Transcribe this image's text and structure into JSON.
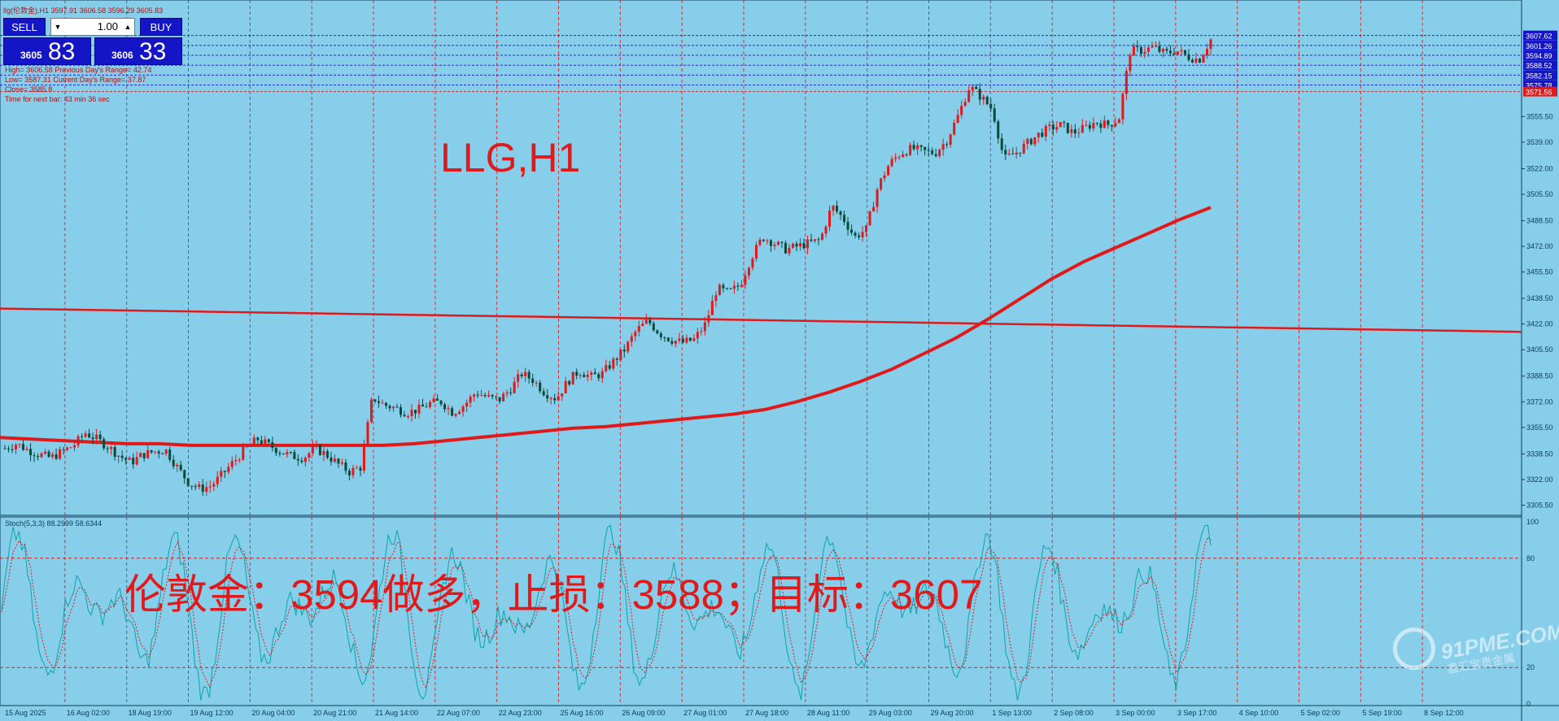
{
  "window": {
    "title": "llg(伦敦金),H1",
    "ohlc": "3597.91 3606.58 3596.29 3605.83"
  },
  "trade_panel": {
    "sell_label": "SELL",
    "buy_label": "BUY",
    "lot": "1.00",
    "bid_small": "3605",
    "bid_big": "83",
    "ask_small": "3606",
    "ask_big": "33"
  },
  "info_lines": [
    "High= 3606.58  Previous Day's Range= 42.74",
    "Low= 3587.31  Current Day's Range= 37.87",
    "Close= 3585.8",
    "Time for next bar: 43 min 36 sec"
  ],
  "overlay_title": "LLG,H1",
  "overlay_note": "伦敦金：3594做多，止损：3588；目标：3607",
  "stoch_label": "Stoch(5,3,3) 88.2999 58.6344",
  "watermark": {
    "logo": "91PME.COM",
    "sub": "鑫汇宝贵金属"
  },
  "colors": {
    "background": "#87CEEB",
    "up_candle": "#e01a1a",
    "down_candle": "#0a4a3a",
    "ma": "#e01a1a",
    "grid": "#e01a1a",
    "stoch_main": "#0aa5a5",
    "stoch_signal": "#e01a1a",
    "price_box": "#1515c8"
  },
  "chart_data": [
    {
      "type": "candlestick",
      "title": "LLG,H1",
      "ylim": [
        3300,
        3620
      ],
      "y_ticks": [
        "3555.50",
        "3539.00",
        "3522.00",
        "3505.50",
        "3488.50",
        "3472.00",
        "3455.50",
        "3438.50",
        "3422.00",
        "3405.50",
        "3388.50",
        "3372.00",
        "3355.50",
        "3338.50",
        "3322.00",
        "3305.50"
      ],
      "level_labels": [
        "3607.62",
        "3601.26",
        "3594.89",
        "3588.52",
        "3582.15",
        "3575.78",
        "3571.56"
      ],
      "x_ticks": [
        "15 Aug 2025",
        "16 Aug 02:00",
        "18 Aug 19:00",
        "19 Aug 12:00",
        "20 Aug 04:00",
        "20 Aug 21:00",
        "21 Aug 14:00",
        "22 Aug 07:00",
        "22 Aug 23:00",
        "25 Aug 16:00",
        "26 Aug 09:00",
        "27 Aug 01:00",
        "27 Aug 18:00",
        "28 Aug 11:00",
        "29 Aug 03:00",
        "29 Aug 20:00",
        "1 Sep 13:00",
        "2 Sep 08:00",
        "3 Sep 00:00",
        "3 Sep 17:00",
        "4 Sep 10:00",
        "5 Sep 02:00",
        "5 Sep 19:00",
        "8 Sep 12:00"
      ],
      "close_path": [
        3342,
        3345,
        3341,
        3338,
        3336,
        3340,
        3344,
        3352,
        3348,
        3343,
        3337,
        3333,
        3338,
        3340,
        3341,
        3330,
        3320,
        3316,
        3318,
        3326,
        3334,
        3342,
        3348,
        3344,
        3340,
        3337,
        3336,
        3342,
        3338,
        3332,
        3327,
        3330,
        3375,
        3370,
        3368,
        3365,
        3367,
        3371,
        3372,
        3365,
        3370,
        3378,
        3375,
        3373,
        3380,
        3390,
        3386,
        3378,
        3374,
        3385,
        3392,
        3388,
        3390,
        3398,
        3406,
        3418,
        3424,
        3416,
        3412,
        3410,
        3412,
        3422,
        3445,
        3442,
        3447,
        3465,
        3478,
        3474,
        3470,
        3472,
        3474,
        3476,
        3498,
        3490,
        3478,
        3483,
        3510,
        3525,
        3532,
        3535,
        3533,
        3532,
        3540,
        3556,
        3575,
        3568,
        3560,
        3528,
        3532,
        3538,
        3544,
        3548,
        3550,
        3545,
        3548,
        3552,
        3550,
        3554,
        3598,
        3598,
        3600,
        3596,
        3598,
        3594,
        3592,
        3605
      ],
      "series": [
        {
          "name": "MA fast",
          "values": [
            3349,
            3348,
            3347,
            3346,
            3345,
            3345,
            3344,
            3344,
            3344,
            3344,
            3344,
            3344,
            3344,
            3345,
            3347,
            3349,
            3351,
            3353,
            3355,
            3356,
            3358,
            3360,
            3362,
            3364,
            3367,
            3372,
            3378,
            3385,
            3393,
            3403,
            3413,
            3425,
            3438,
            3451,
            3462,
            3471,
            3480,
            3489,
            3497
          ]
        },
        {
          "name": "MA slow",
          "values": [
            3432,
            3431,
            3430,
            3429,
            3428,
            3427,
            3426,
            3425,
            3424,
            3423,
            3422,
            3421,
            3420,
            3419,
            3418,
            3417
          ]
        }
      ]
    },
    {
      "type": "line",
      "title": "Stoch(5,3,3) 88.2999 58.6344",
      "ylim": [
        0,
        100
      ],
      "y_ticks": [
        "100",
        "80",
        "20",
        "0"
      ],
      "levels": [
        80,
        20
      ]
    }
  ]
}
